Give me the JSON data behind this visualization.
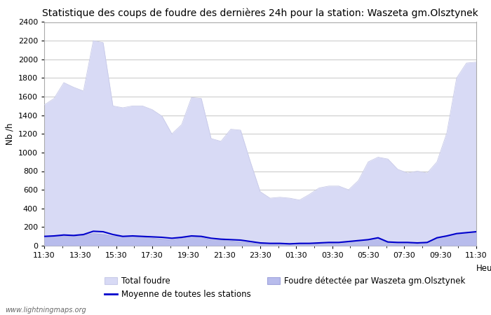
{
  "title": "Statistique des coups de foudre des dernières 24h pour la station: Waszeta gm.Olsztynek",
  "xlabel": "Heure",
  "ylabel": "Nb /h",
  "ylim": [
    0,
    2400
  ],
  "yticks": [
    0,
    200,
    400,
    600,
    800,
    1000,
    1200,
    1400,
    1600,
    1800,
    2000,
    2200,
    2400
  ],
  "xtick_labels": [
    "11:30",
    "13:30",
    "15:30",
    "17:30",
    "19:30",
    "21:30",
    "23:30",
    "01:30",
    "03:30",
    "05:30",
    "07:30",
    "09:30",
    "11:30"
  ],
  "background_color": "#ffffff",
  "plot_bg_color": "#ffffff",
  "grid_color": "#cccccc",
  "total_foudre_color": "#d8daf5",
  "total_foudre_edge_color": "#c8cae8",
  "waszeta_color": "#b8bcec",
  "waszeta_edge_color": "#a0a4dc",
  "moyenne_color": "#0000cc",
  "watermark": "www.lightningmaps.org",
  "total_foudre_values": [
    1510,
    1580,
    1750,
    1700,
    1660,
    2200,
    2180,
    1500,
    1480,
    1500,
    1500,
    1460,
    1390,
    1200,
    1300,
    1590,
    1580,
    1150,
    1120,
    1250,
    1240,
    900,
    580,
    510,
    520,
    510,
    490,
    550,
    620,
    640,
    640,
    600,
    700,
    900,
    950,
    930,
    820,
    780,
    800,
    780,
    900,
    1210,
    1800,
    1960,
    1970
  ],
  "waszeta_values": [
    100,
    100,
    100,
    100,
    110,
    130,
    120,
    100,
    100,
    100,
    90,
    80,
    70,
    60,
    80,
    100,
    90,
    60,
    60,
    50,
    40,
    30,
    20,
    15,
    15,
    15,
    20,
    15,
    20,
    25,
    30,
    40,
    50,
    60,
    80,
    30,
    30,
    30,
    20,
    30,
    80,
    100,
    130,
    140,
    150
  ],
  "moyenne_values": [
    100,
    105,
    115,
    110,
    120,
    155,
    150,
    120,
    100,
    105,
    100,
    95,
    90,
    80,
    90,
    105,
    100,
    80,
    70,
    65,
    60,
    45,
    30,
    25,
    25,
    20,
    25,
    25,
    30,
    35,
    35,
    45,
    55,
    65,
    85,
    40,
    35,
    35,
    30,
    35,
    85,
    105,
    130,
    140,
    150
  ],
  "n_points": 45,
  "title_fontsize": 10,
  "tick_fontsize": 8,
  "label_fontsize": 8.5,
  "legend_fontsize": 8.5
}
